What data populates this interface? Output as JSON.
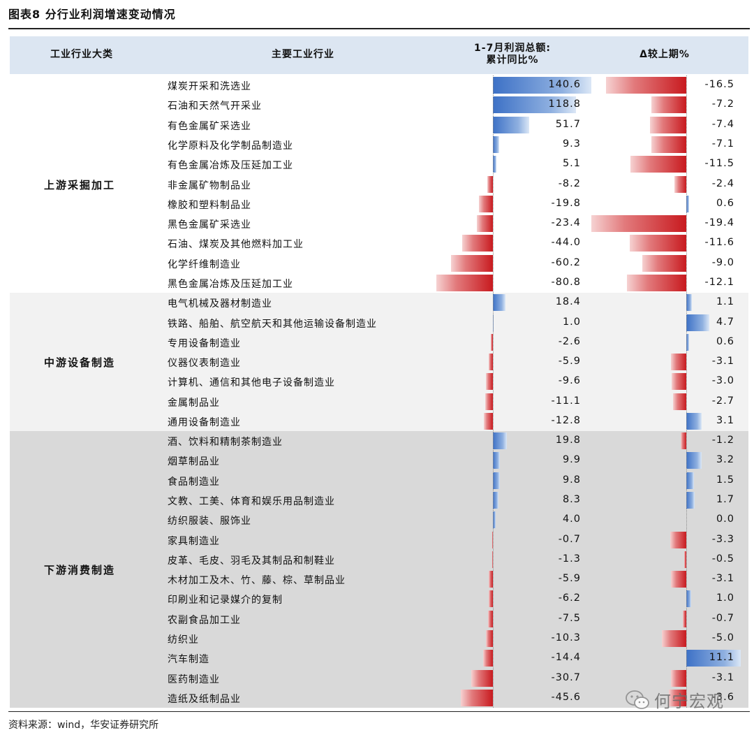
{
  "figure_title": "图表8 分行业利润增速变动情况",
  "source_note": "资料来源：wind，华安证券研究所",
  "watermark_text": "何宁宏观",
  "watermark_icon": "wechat-icon",
  "colors": {
    "header_bg": "#dce6f2",
    "group2_bg": "#f2f2f2",
    "group3_bg": "#d9d9d9",
    "positive": "#3d71c6",
    "negative": "#c81a1f"
  },
  "header": {
    "col1": "工业行业大类",
    "col2": "主要工业行业",
    "col3_line1": "1-7月利润总额:",
    "col3_line2": "累计同比%",
    "col4": "Δ较上期%"
  },
  "chart_data": {
    "type": "table",
    "title": "图表8 分行业利润增速变动情况",
    "columns": [
      "工业行业大类",
      "主要工业行业",
      "1-7月利润总额:累计同比%",
      "Δ较上期%"
    ],
    "groups": [
      {
        "name": "上游采掘加工",
        "rows": [
          {
            "industry": "煤炭开采和洗选业",
            "yoy": 140.6,
            "yoy_label": "140.6",
            "delta": -16.5,
            "delta_label": "-16.5"
          },
          {
            "industry": "石油和天然气开采业",
            "yoy": 118.8,
            "yoy_label": "118.8",
            "delta": -7.2,
            "delta_label": "-7.2"
          },
          {
            "industry": "有色金属矿采选业",
            "yoy": 51.7,
            "yoy_label": "51.7",
            "delta": -7.4,
            "delta_label": "-7.4"
          },
          {
            "industry": "化学原料及化学制品制造业",
            "yoy": 9.3,
            "yoy_label": "9.3",
            "delta": -7.1,
            "delta_label": "-7.1"
          },
          {
            "industry": "有色金属冶炼及压延加工业",
            "yoy": 5.1,
            "yoy_label": "5.1",
            "delta": -11.5,
            "delta_label": "-11.5"
          },
          {
            "industry": "非金属矿物制品业",
            "yoy": -8.2,
            "yoy_label": "-8.2",
            "delta": -2.4,
            "delta_label": "-2.4"
          },
          {
            "industry": "橡胶和塑料制品业",
            "yoy": -19.8,
            "yoy_label": "-19.8",
            "delta": 0.6,
            "delta_label": "0.6"
          },
          {
            "industry": "黑色金属矿采选业",
            "yoy": -23.4,
            "yoy_label": "-23.4",
            "delta": -19.4,
            "delta_label": "-19.4"
          },
          {
            "industry": "石油、煤炭及其他燃料加工业",
            "yoy": -44.0,
            "yoy_label": "-44.0",
            "delta": -11.6,
            "delta_label": "-11.6"
          },
          {
            "industry": "化学纤维制造业",
            "yoy": -60.2,
            "yoy_label": "-60.2",
            "delta": -9.0,
            "delta_label": "-9.0"
          },
          {
            "industry": "黑色金属冶炼及压延加工业",
            "yoy": -80.8,
            "yoy_label": "-80.8",
            "delta": -12.1,
            "delta_label": "-12.1"
          }
        ]
      },
      {
        "name": "中游设备制造",
        "rows": [
          {
            "industry": "电气机械及器材制造业",
            "yoy": 18.4,
            "yoy_label": "18.4",
            "delta": 1.1,
            "delta_label": "1.1"
          },
          {
            "industry": "铁路、船舶、航空航天和其他运输设备制造业",
            "yoy": 1.0,
            "yoy_label": "1.0",
            "delta": 4.7,
            "delta_label": "4.7"
          },
          {
            "industry": "专用设备制造业",
            "yoy": -2.6,
            "yoy_label": "-2.6",
            "delta": 0.6,
            "delta_label": "0.6"
          },
          {
            "industry": "仪器仪表制造业",
            "yoy": -5.9,
            "yoy_label": "-5.9",
            "delta": -3.1,
            "delta_label": "-3.1"
          },
          {
            "industry": "计算机、通信和其他电子设备制造业",
            "yoy": -9.6,
            "yoy_label": "-9.6",
            "delta": -3.0,
            "delta_label": "-3.0"
          },
          {
            "industry": "金属制品业",
            "yoy": -11.1,
            "yoy_label": "-11.1",
            "delta": -2.7,
            "delta_label": "-2.7"
          },
          {
            "industry": "通用设备制造业",
            "yoy": -12.8,
            "yoy_label": "-12.8",
            "delta": 3.1,
            "delta_label": "3.1"
          }
        ]
      },
      {
        "name": "下游消费制造",
        "rows": [
          {
            "industry": "酒、饮料和精制茶制造业",
            "yoy": 19.8,
            "yoy_label": "19.8",
            "delta": -1.2,
            "delta_label": "-1.2"
          },
          {
            "industry": "烟草制品业",
            "yoy": 9.9,
            "yoy_label": "9.9",
            "delta": 3.2,
            "delta_label": "3.2"
          },
          {
            "industry": "食品制造业",
            "yoy": 9.8,
            "yoy_label": "9.8",
            "delta": 1.5,
            "delta_label": "1.5"
          },
          {
            "industry": "文教、工美、体育和娱乐用品制造业",
            "yoy": 8.3,
            "yoy_label": "8.3",
            "delta": 1.7,
            "delta_label": "1.7"
          },
          {
            "industry": "纺织服装、服饰业",
            "yoy": 4.0,
            "yoy_label": "4.0",
            "delta": 0.0,
            "delta_label": "0.0"
          },
          {
            "industry": "家具制造业",
            "yoy": -0.7,
            "yoy_label": "-0.7",
            "delta": -3.3,
            "delta_label": "-3.3"
          },
          {
            "industry": "皮革、毛皮、羽毛及其制品和制鞋业",
            "yoy": -1.3,
            "yoy_label": "-1.3",
            "delta": -0.5,
            "delta_label": "-0.5"
          },
          {
            "industry": "木材加工及木、竹、藤、棕、草制品业",
            "yoy": -5.9,
            "yoy_label": "-5.9",
            "delta": -3.1,
            "delta_label": "-3.1"
          },
          {
            "industry": "印刷业和记录媒介的复制",
            "yoy": -6.2,
            "yoy_label": "-6.2",
            "delta": 1.0,
            "delta_label": "1.0"
          },
          {
            "industry": "农副食品加工业",
            "yoy": -7.5,
            "yoy_label": "-7.5",
            "delta": -0.7,
            "delta_label": "-0.7"
          },
          {
            "industry": "纺织业",
            "yoy": -10.3,
            "yoy_label": "-10.3",
            "delta": -5.0,
            "delta_label": "-5.0"
          },
          {
            "industry": "汽车制造",
            "yoy": -14.4,
            "yoy_label": "-14.4",
            "delta": 11.1,
            "delta_label": "11.1"
          },
          {
            "industry": "医药制造业",
            "yoy": -30.7,
            "yoy_label": "-30.7",
            "delta": -3.1,
            "delta_label": "-3.1"
          },
          {
            "industry": "造纸及纸制品业",
            "yoy": -45.6,
            "yoy_label": "-45.6",
            "delta": -3.6,
            "delta_label": "-3.6"
          }
        ]
      }
    ]
  }
}
